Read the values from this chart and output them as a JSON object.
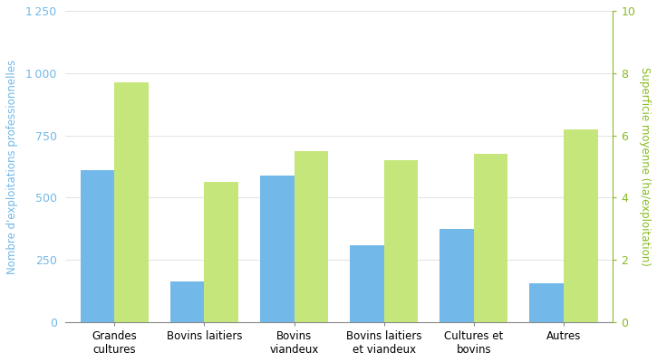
{
  "categories": [
    "Grandes\ncultures",
    "Bovins laitiers",
    "Bovins\nviandeux",
    "Bovins laitiers\net viandeux",
    "Cultures et\nbovins",
    "Autres"
  ],
  "blue_values": [
    610,
    165,
    590,
    310,
    375,
    155
  ],
  "green_values": [
    7.7,
    4.5,
    5.5,
    5.2,
    5.4,
    6.2
  ],
  "left_ylabel": "Nombre d'exploitations professionnelles",
  "right_ylabel": "Superficie moyenne (ha/exploitation)",
  "left_ylim": [
    0,
    1250
  ],
  "right_ylim": [
    0,
    10
  ],
  "left_yticks": [
    0,
    250,
    500,
    750,
    1000,
    1250
  ],
  "right_yticks": [
    0,
    2,
    4,
    6,
    8,
    10
  ],
  "blue_color": "#72B8E8",
  "green_color": "#C5E67A",
  "left_label_color": "#72B8E8",
  "right_label_color": "#88BB22",
  "tick_color_left": "#72B8E8",
  "tick_color_right": "#88BB22",
  "grid_color": "#DDDDDD",
  "bar_width": 0.38,
  "figsize": [
    7.25,
    4.0
  ],
  "dpi": 100
}
